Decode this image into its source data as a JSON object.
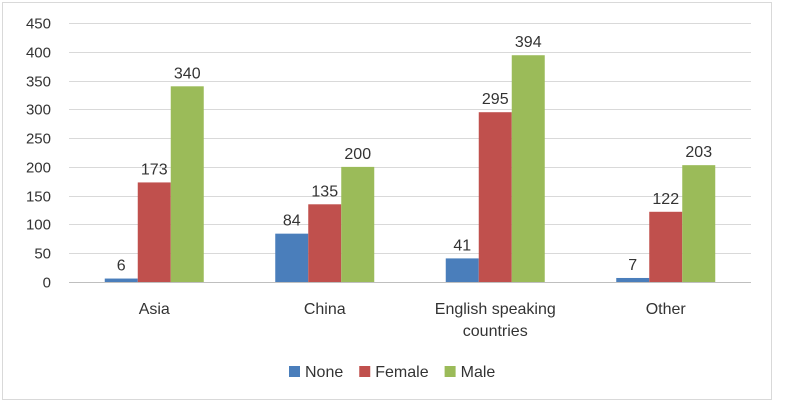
{
  "chart_data": {
    "type": "bar",
    "categories": [
      [
        "Asia"
      ],
      [
        "China"
      ],
      [
        "English speaking",
        "countries"
      ],
      [
        "Other"
      ]
    ],
    "series": [
      {
        "name": "None",
        "color": "#4a7ebb",
        "values": [
          6,
          84,
          41,
          7
        ]
      },
      {
        "name": "Female",
        "color": "#c0504d",
        "values": [
          173,
          135,
          295,
          122
        ]
      },
      {
        "name": "Male",
        "color": "#9bbb59",
        "values": [
          340,
          200,
          394,
          203
        ]
      }
    ],
    "title": "",
    "xlabel": "",
    "ylabel": "",
    "ylim": [
      0,
      450
    ],
    "yticks": [
      0,
      50,
      100,
      150,
      200,
      250,
      300,
      350,
      400,
      450
    ],
    "grid": true,
    "legend_position": "bottom",
    "data_labels": true
  }
}
